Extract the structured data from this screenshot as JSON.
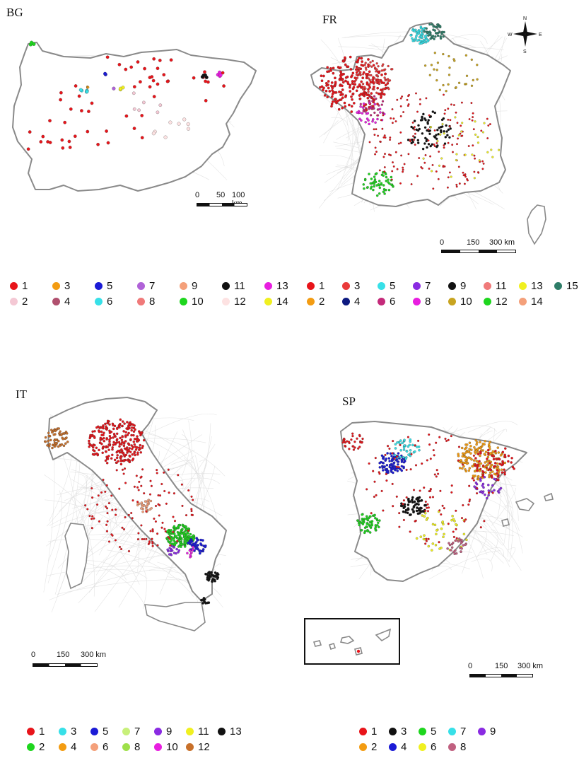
{
  "panels": [
    {
      "id": "bg",
      "title": "BG",
      "scale": {
        "labels": [
          "0",
          "50",
          "100 km"
        ]
      },
      "legend": [
        {
          "label": "1",
          "color": "#e8141a"
        },
        {
          "label": "2",
          "color": "#f4c8d4"
        },
        {
          "label": "3",
          "color": "#f39c12"
        },
        {
          "label": "4",
          "color": "#b0506e"
        },
        {
          "label": "5",
          "color": "#1b1bd6"
        },
        {
          "label": "6",
          "color": "#37e0e8"
        },
        {
          "label": "7",
          "color": "#b062d8"
        },
        {
          "label": "8",
          "color": "#f07a7a"
        },
        {
          "label": "9",
          "color": "#f4a07a"
        },
        {
          "label": "10",
          "color": "#1ed61e"
        },
        {
          "label": "11",
          "color": "#111111"
        },
        {
          "label": "12",
          "color": "#fde2e2"
        },
        {
          "label": "13",
          "color": "#e81ee0"
        },
        {
          "label": "14",
          "color": "#f0f020"
        }
      ]
    },
    {
      "id": "fr",
      "title": "FR",
      "scale": {
        "labels": [
          "0",
          "150",
          "300 km"
        ]
      },
      "compass": {
        "n": "N",
        "s": "S",
        "e": "E",
        "w": "W"
      },
      "legend": [
        {
          "label": "1",
          "color": "#e8141a"
        },
        {
          "label": "2",
          "color": "#f39c12"
        },
        {
          "label": "3",
          "color": "#ea3a3a"
        },
        {
          "label": "4",
          "color": "#0d1a80"
        },
        {
          "label": "5",
          "color": "#37e0e8"
        },
        {
          "label": "6",
          "color": "#c42a7a"
        },
        {
          "label": "7",
          "color": "#8a2be2"
        },
        {
          "label": "8",
          "color": "#e81ee0"
        },
        {
          "label": "9",
          "color": "#111111"
        },
        {
          "label": "10",
          "color": "#c8a420"
        },
        {
          "label": "11",
          "color": "#f07a7a"
        },
        {
          "label": "12",
          "color": "#1ed61e"
        },
        {
          "label": "13",
          "color": "#f0f020"
        },
        {
          "label": "14",
          "color": "#f4a07a"
        },
        {
          "label": "15",
          "color": "#2e7d68"
        }
      ]
    },
    {
      "id": "it",
      "title": "IT",
      "scale": {
        "labels": [
          "0",
          "150",
          "300 km"
        ]
      },
      "legend": [
        {
          "label": "1",
          "color": "#e8141a"
        },
        {
          "label": "2",
          "color": "#1ed61e"
        },
        {
          "label": "3",
          "color": "#37e0e8"
        },
        {
          "label": "4",
          "color": "#f39c12"
        },
        {
          "label": "5",
          "color": "#1b1bd6"
        },
        {
          "label": "6",
          "color": "#f4a07a"
        },
        {
          "label": "7",
          "color": "#c8f07a"
        },
        {
          "label": "8",
          "color": "#9ee04a"
        },
        {
          "label": "9",
          "color": "#8a2be2"
        },
        {
          "label": "10",
          "color": "#e81ee0"
        },
        {
          "label": "11",
          "color": "#f0f020"
        },
        {
          "label": "12",
          "color": "#c8702a"
        },
        {
          "label": "13",
          "color": "#111111"
        }
      ]
    },
    {
      "id": "sp",
      "title": "SP",
      "scale": {
        "labels": [
          "0",
          "150",
          "300 km"
        ]
      },
      "legend": [
        {
          "label": "1",
          "color": "#e8141a"
        },
        {
          "label": "2",
          "color": "#f39c12"
        },
        {
          "label": "3",
          "color": "#111111"
        },
        {
          "label": "4",
          "color": "#1b1bd6"
        },
        {
          "label": "5",
          "color": "#1ed61e"
        },
        {
          "label": "6",
          "color": "#f0f020"
        },
        {
          "label": "7",
          "color": "#37e0e8"
        },
        {
          "label": "8",
          "color": "#c06080"
        },
        {
          "label": "9",
          "color": "#8a2be2"
        }
      ]
    }
  ]
}
